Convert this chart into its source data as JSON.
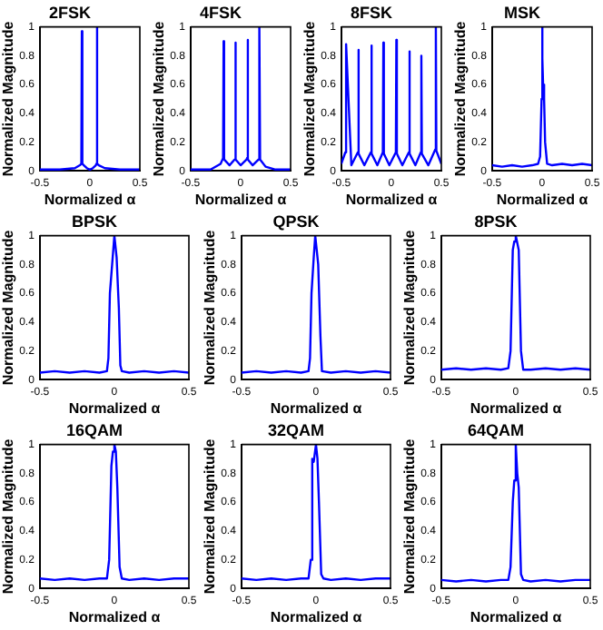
{
  "chart_data": [
    {
      "type": "line",
      "title": "2FSK",
      "xlabel": "Normalized α",
      "ylabel": "Normalized Magnitude",
      "xlim": [
        -0.5,
        0.5
      ],
      "xticks": [
        -0.5,
        0,
        0.5
      ],
      "ylim": [
        0,
        1
      ],
      "yticks": [
        0,
        0.2,
        0.4,
        0.6,
        0.8,
        1
      ],
      "grid": false,
      "legend": false,
      "series": [
        {
          "color": "#0000ff",
          "x": [
            -0.5,
            -0.3,
            -0.15,
            -0.1,
            -0.085,
            -0.08,
            -0.075,
            -0.06,
            -0.03,
            0,
            0.03,
            0.06,
            0.065,
            0.07,
            0.075,
            0.09,
            0.15,
            0.3,
            0.5
          ],
          "values": [
            0.01,
            0.01,
            0.02,
            0.04,
            0.05,
            0.97,
            0.05,
            0.04,
            0.02,
            0.01,
            0.02,
            0.04,
            0.05,
            1,
            0.05,
            0.04,
            0.02,
            0.01,
            0.01
          ]
        }
      ]
    },
    {
      "type": "line",
      "title": "4FSK",
      "xlabel": "Normalized α",
      "ylabel": "Normalized Magnitude",
      "xlim": [
        -0.5,
        0.5
      ],
      "xticks": [
        -0.5,
        0,
        0.5
      ],
      "ylim": [
        0,
        1
      ],
      "yticks": [
        0,
        0.2,
        0.4,
        0.6,
        0.8,
        1
      ],
      "grid": false,
      "legend": false,
      "series": [
        {
          "color": "#0000ff",
          "x": [
            -0.5,
            -0.3,
            -0.2,
            -0.175,
            -0.17,
            -0.165,
            -0.11,
            -0.06,
            -0.055,
            -0.05,
            -0.045,
            0.0,
            0.06,
            0.065,
            0.07,
            0.075,
            0.12,
            0.18,
            0.185,
            0.19,
            0.195,
            0.25,
            0.35,
            0.5
          ],
          "values": [
            0.01,
            0.01,
            0.05,
            0.09,
            0.9,
            0.08,
            0.04,
            0.08,
            0.09,
            0.89,
            0.08,
            0.04,
            0.08,
            0.09,
            0.91,
            0.08,
            0.04,
            0.08,
            0.09,
            1,
            0.08,
            0.03,
            0.01,
            0.01
          ]
        }
      ]
    },
    {
      "type": "line",
      "title": "8FSK",
      "xlabel": "Normalized α",
      "ylabel": "Normalized Magnitude",
      "xlim": [
        -0.5,
        0.5
      ],
      "xticks": [
        -0.5,
        0,
        0.5
      ],
      "ylim": [
        0,
        1
      ],
      "yticks": [
        0,
        0.2,
        0.4,
        0.6,
        0.8,
        1
      ],
      "grid": false,
      "legend": false,
      "series": [
        {
          "color": "#0000ff",
          "x": [
            -0.5,
            -0.46,
            -0.455,
            -0.45,
            -0.4,
            -0.335,
            -0.33,
            -0.325,
            -0.27,
            -0.205,
            -0.2,
            -0.195,
            -0.14,
            -0.085,
            -0.08,
            -0.075,
            -0.02,
            0.045,
            0.05,
            0.055,
            0.11,
            0.175,
            0.18,
            0.185,
            0.24,
            0.295,
            0.3,
            0.305,
            0.37,
            0.44,
            0.445,
            0.45,
            0.5
          ],
          "values": [
            0.05,
            0.13,
            0.14,
            0.88,
            0.04,
            0.13,
            0.84,
            0.12,
            0.04,
            0.13,
            0.87,
            0.12,
            0.04,
            0.13,
            0.89,
            0.12,
            0.04,
            0.13,
            0.91,
            0.12,
            0.04,
            0.13,
            0.83,
            0.12,
            0.04,
            0.13,
            0.8,
            0.12,
            0.04,
            0.15,
            1,
            0.14,
            0.05
          ]
        }
      ]
    },
    {
      "type": "line",
      "title": "MSK",
      "xlabel": "Normalized α",
      "ylabel": "Normalized Magnitude",
      "xlim": [
        -0.5,
        0.5
      ],
      "xticks": [
        -0.5,
        0,
        0.5
      ],
      "ylim": [
        0,
        1
      ],
      "yticks": [
        0,
        0.2,
        0.4,
        0.6,
        0.8,
        1
      ],
      "grid": false,
      "legend": false,
      "series": [
        {
          "color": "#0000ff",
          "x": [
            -0.5,
            -0.4,
            -0.3,
            -0.2,
            -0.1,
            -0.04,
            -0.02,
            -0.005,
            0,
            0.005,
            0.01,
            0.02,
            0.03,
            0.05,
            0.1,
            0.2,
            0.3,
            0.4,
            0.5
          ],
          "values": [
            0.04,
            0.03,
            0.04,
            0.03,
            0.04,
            0.05,
            0.1,
            0.5,
            1,
            0.78,
            0.6,
            0.5,
            0.2,
            0.05,
            0.04,
            0.05,
            0.04,
            0.05,
            0.04
          ]
        }
      ]
    },
    {
      "type": "line",
      "title": "BPSK",
      "xlabel": "Normalized α",
      "ylabel": "Normalized Magnitude",
      "xlim": [
        -0.5,
        0.5
      ],
      "xticks": [
        -0.5,
        0,
        0.5
      ],
      "ylim": [
        0,
        1
      ],
      "yticks": [
        0,
        0.2,
        0.4,
        0.6,
        0.8,
        1
      ],
      "grid": false,
      "legend": false,
      "series": [
        {
          "color": "#0000ff",
          "x": [
            -0.5,
            -0.4,
            -0.3,
            -0.2,
            -0.1,
            -0.05,
            -0.04,
            -0.03,
            -0.015,
            0,
            0.015,
            0.03,
            0.04,
            0.05,
            0.1,
            0.2,
            0.3,
            0.4,
            0.5
          ],
          "values": [
            0.05,
            0.06,
            0.05,
            0.06,
            0.05,
            0.06,
            0.15,
            0.6,
            0.8,
            1,
            0.85,
            0.5,
            0.1,
            0.06,
            0.05,
            0.06,
            0.05,
            0.06,
            0.05
          ]
        }
      ]
    },
    {
      "type": "line",
      "title": "QPSK",
      "xlabel": "Normalized α",
      "ylabel": "Normalized Magnitude",
      "xlim": [
        -0.5,
        0.5
      ],
      "xticks": [
        -0.5,
        0,
        0.5
      ],
      "ylim": [
        0,
        1
      ],
      "yticks": [
        0,
        0.2,
        0.4,
        0.6,
        0.8,
        1
      ],
      "grid": false,
      "legend": false,
      "series": [
        {
          "color": "#0000ff",
          "x": [
            -0.5,
            -0.4,
            -0.3,
            -0.2,
            -0.1,
            -0.05,
            -0.04,
            -0.03,
            -0.015,
            -0.005,
            0.005,
            0.015,
            0.03,
            0.04,
            0.1,
            0.2,
            0.3,
            0.4,
            0.5
          ],
          "values": [
            0.05,
            0.06,
            0.05,
            0.06,
            0.05,
            0.06,
            0.15,
            0.6,
            0.85,
            1,
            0.9,
            0.8,
            0.3,
            0.06,
            0.05,
            0.06,
            0.05,
            0.06,
            0.05
          ]
        }
      ]
    },
    {
      "type": "line",
      "title": "8PSK",
      "xlabel": "Normalized α",
      "ylabel": "Normalized Magnitude",
      "xlim": [
        -0.5,
        0.5
      ],
      "xticks": [
        -0.5,
        0,
        0.5
      ],
      "ylim": [
        0,
        1
      ],
      "yticks": [
        0,
        0.2,
        0.4,
        0.6,
        0.8,
        1
      ],
      "grid": false,
      "legend": false,
      "series": [
        {
          "color": "#0000ff",
          "x": [
            -0.5,
            -0.4,
            -0.3,
            -0.2,
            -0.1,
            -0.05,
            -0.035,
            -0.02,
            -0.01,
            0,
            0.01,
            0.02,
            0.035,
            0.05,
            0.1,
            0.2,
            0.3,
            0.4,
            0.5
          ],
          "values": [
            0.07,
            0.08,
            0.07,
            0.08,
            0.07,
            0.08,
            0.2,
            0.9,
            0.96,
            1,
            0.95,
            0.9,
            0.2,
            0.07,
            0.07,
            0.08,
            0.07,
            0.08,
            0.07
          ]
        }
      ]
    },
    {
      "type": "line",
      "title": "16QAM",
      "xlabel": "Normalized α",
      "ylabel": "Normalized Magnitude",
      "xlim": [
        -0.5,
        0.5
      ],
      "xticks": [
        -0.5,
        0,
        0.5
      ],
      "ylim": [
        0,
        1
      ],
      "yticks": [
        0,
        0.2,
        0.4,
        0.6,
        0.8,
        1
      ],
      "grid": false,
      "legend": false,
      "series": [
        {
          "color": "#0000ff",
          "x": [
            -0.5,
            -0.4,
            -0.3,
            -0.2,
            -0.1,
            -0.05,
            -0.035,
            -0.02,
            -0.01,
            0,
            0.01,
            0.02,
            0.035,
            0.05,
            0.1,
            0.2,
            0.3,
            0.4,
            0.5
          ],
          "values": [
            0.07,
            0.06,
            0.07,
            0.06,
            0.07,
            0.07,
            0.2,
            0.85,
            0.95,
            1,
            0.95,
            0.7,
            0.15,
            0.07,
            0.06,
            0.07,
            0.06,
            0.07,
            0.07
          ]
        }
      ]
    },
    {
      "type": "line",
      "title": "32QAM",
      "xlabel": "Normalized α",
      "ylabel": "Normalized Magnitude",
      "xlim": [
        -0.5,
        0.5
      ],
      "xticks": [
        -0.5,
        0,
        0.5
      ],
      "ylim": [
        0,
        1
      ],
      "yticks": [
        0,
        0.2,
        0.4,
        0.6,
        0.8,
        1
      ],
      "grid": false,
      "legend": false,
      "series": [
        {
          "color": "#0000ff",
          "x": [
            -0.5,
            -0.4,
            -0.3,
            -0.2,
            -0.1,
            -0.05,
            -0.035,
            -0.025,
            -0.015,
            0,
            0.01,
            0.02,
            0.035,
            0.05,
            0.1,
            0.2,
            0.3,
            0.4,
            0.5
          ],
          "values": [
            0.07,
            0.06,
            0.07,
            0.06,
            0.07,
            0.07,
            0.2,
            0.9,
            0.88,
            1,
            0.9,
            0.6,
            0.1,
            0.07,
            0.06,
            0.07,
            0.06,
            0.07,
            0.07
          ]
        }
      ]
    },
    {
      "type": "line",
      "title": "64QAM",
      "xlabel": "Normalized α",
      "ylabel": "Normalized Magnitude",
      "xlim": [
        -0.5,
        0.5
      ],
      "xticks": [
        -0.5,
        0,
        0.5
      ],
      "ylim": [
        0,
        1
      ],
      "yticks": [
        0,
        0.2,
        0.4,
        0.6,
        0.8,
        1
      ],
      "grid": false,
      "legend": false,
      "series": [
        {
          "color": "#0000ff",
          "x": [
            -0.5,
            -0.4,
            -0.3,
            -0.2,
            -0.1,
            -0.05,
            -0.035,
            -0.02,
            -0.01,
            0,
            0.01,
            0.02,
            0.035,
            0.05,
            0.1,
            0.2,
            0.3,
            0.4,
            0.5
          ],
          "values": [
            0.06,
            0.05,
            0.06,
            0.05,
            0.06,
            0.06,
            0.15,
            0.6,
            0.75,
            1,
            0.8,
            0.7,
            0.1,
            0.06,
            0.05,
            0.06,
            0.05,
            0.06,
            0.06
          ]
        }
      ]
    }
  ]
}
